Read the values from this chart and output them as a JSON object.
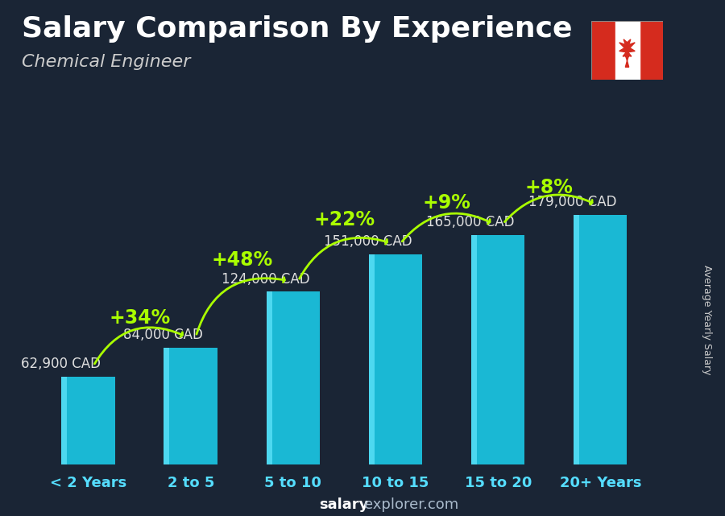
{
  "title": "Salary Comparison By Experience",
  "subtitle": "Chemical Engineer",
  "ylabel": "Average Yearly Salary",
  "categories": [
    "< 2 Years",
    "2 to 5",
    "5 to 10",
    "10 to 15",
    "15 to 20",
    "20+ Years"
  ],
  "values": [
    62900,
    84000,
    124000,
    151000,
    165000,
    179000
  ],
  "labels": [
    "62,900 CAD",
    "84,000 CAD",
    "124,000 CAD",
    "151,000 CAD",
    "165,000 CAD",
    "179,000 CAD"
  ],
  "pct_changes": [
    null,
    "+34%",
    "+48%",
    "+22%",
    "+9%",
    "+8%"
  ],
  "label_positions": [
    "left",
    "left",
    "left",
    "left",
    "left",
    "right"
  ],
  "bar_color": "#1ab8d4",
  "bar_color_light": "#4dd8f0",
  "pct_color": "#aaff00",
  "label_color": "#e0e0e0",
  "title_color": "#ffffff",
  "subtitle_color": "#cccccc",
  "tick_color": "#55ddff",
  "bg_color": "#1a2535",
  "footer_salary_color": "#ffffff",
  "footer_explorer_color": "#aabbcc",
  "ylim": [
    0,
    215000
  ],
  "title_fontsize": 26,
  "subtitle_fontsize": 16,
  "pct_fontsize": 17,
  "label_fontsize": 12,
  "tick_fontsize": 13,
  "ylabel_fontsize": 9
}
